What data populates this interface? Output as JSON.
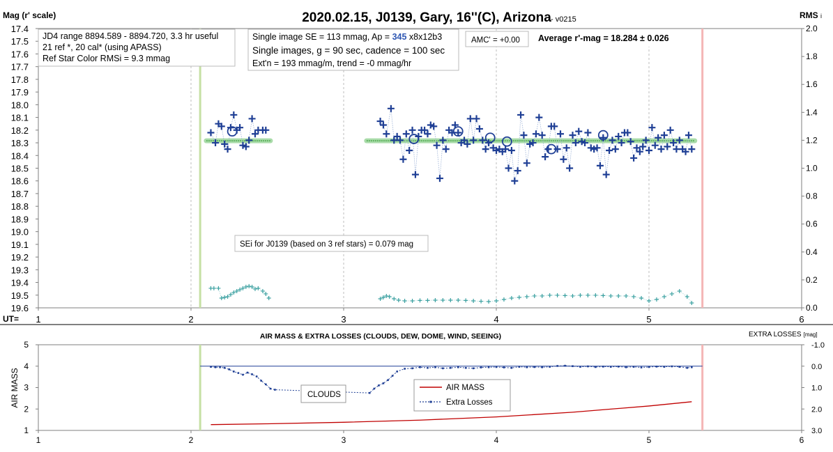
{
  "chart_data": [
    {
      "type": "scatter",
      "title": "2020.02.15, J0139, Gary, 16''(C), Arizona",
      "version": "- v0215",
      "ylabel": "Mag (r' scale)",
      "y2label": "RMS",
      "y2label_sub": "i",
      "xlabel": "UT=",
      "xlim": [
        1,
        6
      ],
      "ylim": [
        19.6,
        17.4
      ],
      "y2lim": [
        0,
        2.0
      ],
      "grid": true,
      "x_ticks": [
        "1",
        "2",
        "3",
        "4",
        "5",
        "6"
      ],
      "y_ticks": [
        "17.4",
        "17.5",
        "17.6",
        "17.7",
        "17.8",
        "17.9",
        "18.0",
        "18.1",
        "18.2",
        "18.3",
        "18.4",
        "18.5",
        "18.6",
        "18.7",
        "18.8",
        "18.9",
        "19.0",
        "19.1",
        "19.2",
        "19.3",
        "19.4",
        "19.5",
        "19.6"
      ],
      "y2_ticks": [
        "0.0",
        "0.2",
        "0.4",
        "0.6",
        "0.8",
        "1.0",
        "1.2",
        "1.4",
        "1.6",
        "1.8",
        "2.0"
      ],
      "vlines": [
        {
          "x": 2.06,
          "color": "#c6e0a4"
        },
        {
          "x": 5.35,
          "color": "#f4b6b6"
        }
      ],
      "annotations": {
        "info1": [
          "JD4 range 8894.589 - 8894.720, 3.3 hr useful",
          "21 ref *, 20 cal* (using APASS)",
          "Ref Star Color RMSi = 9.3 mmag"
        ],
        "info2_a_pre": "Single image SE = 113 mmag, Ap = ",
        "info2_a_val": "345",
        "info2_a_post": " x8x12b3",
        "info2_b": "Single images, g = 90 sec, cadence = 100 sec",
        "info2_c": "Ext'n = 193 mmag/m, trend = -0 mmag/hr",
        "amc": "AMC' = +0.00",
        "avg": "Average r'-mag =  18.284 ± 0.026",
        "sei": "SEi for J0139 (based on 3 ref stars) = 0.079 mag"
      },
      "series": [
        {
          "kind": "plus",
          "color": "#1f3f95",
          "x": [
            2.13,
            2.16,
            2.18,
            2.2,
            2.22,
            2.24,
            2.26,
            2.28,
            2.3,
            2.32,
            2.34,
            2.36,
            2.38,
            2.4,
            2.42,
            2.44,
            2.47,
            2.49,
            3.24,
            3.26,
            3.28,
            3.31,
            3.33,
            3.35,
            3.37,
            3.39,
            3.41,
            3.43,
            3.45,
            3.47,
            3.49,
            3.51,
            3.53,
            3.55,
            3.57,
            3.59,
            3.61,
            3.63,
            3.65,
            3.67,
            3.69,
            3.71,
            3.73,
            3.75,
            3.77,
            3.79,
            3.81,
            3.83,
            3.85,
            3.87,
            3.89,
            3.91,
            3.93,
            3.95,
            3.98,
            4.0,
            4.02,
            4.04,
            4.06,
            4.08,
            4.1,
            4.12,
            4.14,
            4.16,
            4.18,
            4.2,
            4.22,
            4.24,
            4.26,
            4.28,
            4.3,
            4.32,
            4.34,
            4.36,
            4.38,
            4.4,
            4.42,
            4.44,
            4.46,
            4.48,
            4.5,
            4.52,
            4.54,
            4.56,
            4.58,
            4.6,
            4.62,
            4.64,
            4.66,
            4.68,
            4.7,
            4.72,
            4.74,
            4.76,
            4.78,
            4.8,
            4.82,
            4.84,
            4.86,
            4.88,
            4.9,
            4.92,
            4.94,
            4.96,
            4.98,
            5.0,
            5.02,
            5.04,
            5.06,
            5.08,
            5.1,
            5.12,
            5.14,
            5.16,
            5.18,
            5.2,
            5.22,
            5.24,
            5.26,
            5.28
          ],
          "values": [
            18.22,
            18.3,
            18.15,
            18.17,
            18.31,
            18.35,
            18.18,
            18.08,
            18.2,
            18.18,
            18.32,
            18.33,
            18.28,
            18.11,
            18.23,
            18.2,
            18.2,
            18.2,
            18.13,
            18.16,
            18.23,
            18.03,
            18.28,
            18.25,
            18.28,
            18.43,
            18.23,
            18.36,
            18.2,
            18.55,
            18.25,
            18.2,
            18.2,
            18.23,
            18.16,
            18.17,
            18.32,
            18.58,
            18.28,
            18.35,
            18.2,
            18.22,
            18.16,
            18.22,
            18.3,
            18.28,
            18.31,
            18.11,
            18.28,
            18.11,
            18.19,
            18.28,
            18.35,
            18.3,
            18.34,
            18.36,
            18.35,
            18.37,
            18.35,
            18.5,
            18.36,
            18.6,
            18.52,
            18.08,
            18.24,
            18.46,
            18.31,
            18.3,
            18.23,
            18.1,
            18.24,
            18.41,
            18.35,
            18.17,
            18.17,
            18.35,
            18.23,
            18.43,
            18.34,
            18.5,
            18.24,
            18.3,
            18.21,
            18.29,
            18.3,
            18.22,
            18.34,
            18.35,
            18.34,
            18.48,
            18.26,
            18.55,
            18.36,
            18.28,
            18.35,
            18.25,
            18.3,
            18.22,
            18.22,
            18.29,
            18.42,
            18.34,
            18.37,
            18.33,
            18.28,
            18.36,
            18.18,
            18.32,
            18.26,
            18.35,
            18.24,
            18.33,
            18.2,
            18.3,
            18.35,
            18.28,
            18.35,
            18.37,
            18.24,
            18.35
          ]
        },
        {
          "kind": "circle",
          "color": "#1f3f95",
          "x": [
            2.27,
            3.46,
            3.75,
            3.96,
            4.07,
            4.36,
            4.7
          ],
          "values": [
            18.21,
            18.27,
            18.21,
            18.26,
            18.29,
            18.35,
            18.24
          ]
        },
        {
          "kind": "line",
          "color": "#4aa84a",
          "segments": [
            {
              "x": [
                2.1,
                2.52
              ],
              "values": [
                18.284,
                18.284
              ]
            },
            {
              "x": [
                3.15,
                5.3
              ],
              "values": [
                18.284,
                18.284
              ]
            }
          ]
        },
        {
          "kind": "rms",
          "axis": "right",
          "color": "#3aa0a0",
          "x": [
            2.13,
            2.15,
            2.18,
            2.2,
            2.22,
            2.24,
            2.26,
            2.28,
            2.3,
            2.32,
            2.34,
            2.36,
            2.38,
            2.4,
            2.42,
            2.44,
            2.47,
            2.49,
            2.51,
            3.24,
            3.26,
            3.28,
            3.3,
            3.33,
            3.36,
            3.4,
            3.45,
            3.5,
            3.55,
            3.6,
            3.65,
            3.7,
            3.75,
            3.8,
            3.85,
            3.9,
            3.95,
            4.0,
            4.05,
            4.1,
            4.15,
            4.2,
            4.25,
            4.3,
            4.35,
            4.4,
            4.45,
            4.5,
            4.55,
            4.6,
            4.65,
            4.7,
            4.75,
            4.8,
            4.85,
            4.9,
            4.95,
            5.0,
            5.05,
            5.1,
            5.15,
            5.2,
            5.25,
            5.28
          ],
          "values": [
            0.14,
            0.14,
            0.14,
            0.07,
            0.075,
            0.08,
            0.095,
            0.11,
            0.12,
            0.13,
            0.14,
            0.15,
            0.155,
            0.15,
            0.135,
            0.14,
            0.12,
            0.1,
            0.07,
            0.065,
            0.075,
            0.085,
            0.08,
            0.065,
            0.055,
            0.05,
            0.05,
            0.053,
            0.053,
            0.055,
            0.055,
            0.055,
            0.055,
            0.053,
            0.05,
            0.047,
            0.045,
            0.05,
            0.06,
            0.07,
            0.075,
            0.08,
            0.085,
            0.085,
            0.09,
            0.09,
            0.088,
            0.085,
            0.09,
            0.09,
            0.09,
            0.088,
            0.085,
            0.085,
            0.085,
            0.08,
            0.07,
            0.05,
            0.06,
            0.08,
            0.1,
            0.12,
            0.08,
            0.035
          ]
        }
      ]
    },
    {
      "type": "line",
      "title": "AIR MASS & EXTRA LOSSES (CLOUDS, DEW, DOME, WIND, SEEING)",
      "ylabel": "AIR MASS",
      "y2label": "EXTRA LOSSES",
      "y2label_unit": "[mag]",
      "xlim": [
        1,
        6
      ],
      "ylim": [
        1,
        5
      ],
      "y2lim": [
        3.0,
        -1.0
      ],
      "x_ticks": [
        "1",
        "2",
        "3",
        "4",
        "5",
        "6"
      ],
      "y_ticks": [
        "1",
        "2",
        "3",
        "4",
        "5"
      ],
      "y2_ticks": [
        "3.0",
        "2.0",
        "1.0",
        "0.0",
        "-1.0"
      ],
      "vlines": [
        {
          "x": 2.06,
          "color": "#c6e0a4"
        },
        {
          "x": 5.35,
          "color": "#f4b6b6"
        }
      ],
      "annotation": "CLOUDS",
      "legend": [
        "AIR MASS",
        "Extra Losses"
      ],
      "series": [
        {
          "name": "AIR MASS",
          "color": "#c00000",
          "x": [
            2.13,
            2.5,
            3.0,
            3.5,
            4.0,
            4.5,
            5.0,
            5.28
          ],
          "values": [
            1.27,
            1.31,
            1.38,
            1.48,
            1.63,
            1.85,
            2.14,
            2.34
          ]
        },
        {
          "name": "Extra Losses",
          "color": "#1f3f95",
          "axis": "right",
          "x": [
            2.13,
            2.16,
            2.19,
            2.22,
            2.25,
            2.28,
            2.31,
            2.34,
            2.37,
            2.4,
            2.43,
            2.46,
            2.49,
            2.52,
            2.55,
            3.17,
            3.2,
            3.23,
            3.26,
            3.29,
            3.32,
            3.35,
            3.4,
            3.45,
            3.5,
            3.55,
            3.6,
            3.65,
            3.7,
            3.75,
            3.8,
            3.85,
            3.9,
            3.95,
            4.0,
            4.05,
            4.1,
            4.15,
            4.2,
            4.25,
            4.3,
            4.35,
            4.4,
            4.45,
            4.5,
            4.55,
            4.6,
            4.65,
            4.7,
            4.75,
            4.8,
            4.85,
            4.9,
            4.95,
            5.0,
            5.05,
            5.1,
            5.15,
            5.2,
            5.25,
            5.28
          ],
          "values": [
            0.03,
            0.05,
            0.05,
            0.08,
            0.15,
            0.25,
            0.32,
            0.4,
            0.3,
            0.38,
            0.48,
            0.68,
            0.85,
            1.05,
            1.1,
            1.25,
            1.05,
            0.9,
            0.8,
            0.65,
            0.45,
            0.25,
            0.12,
            0.1,
            0.05,
            0.08,
            0.05,
            0.1,
            0.08,
            0.05,
            0.08,
            0.1,
            0.06,
            0.05,
            0.04,
            0.06,
            0.08,
            0.03,
            0.05,
            0.04,
            0.05,
            0.03,
            -0.01,
            -0.02,
            0.0,
            0.03,
            0.01,
            0.04,
            0.02,
            0.03,
            0.02,
            0.05,
            0.03,
            0.06,
            0.04,
            0.02,
            0.03,
            0.01,
            0.03,
            0.08,
            0.05
          ]
        }
      ]
    }
  ]
}
